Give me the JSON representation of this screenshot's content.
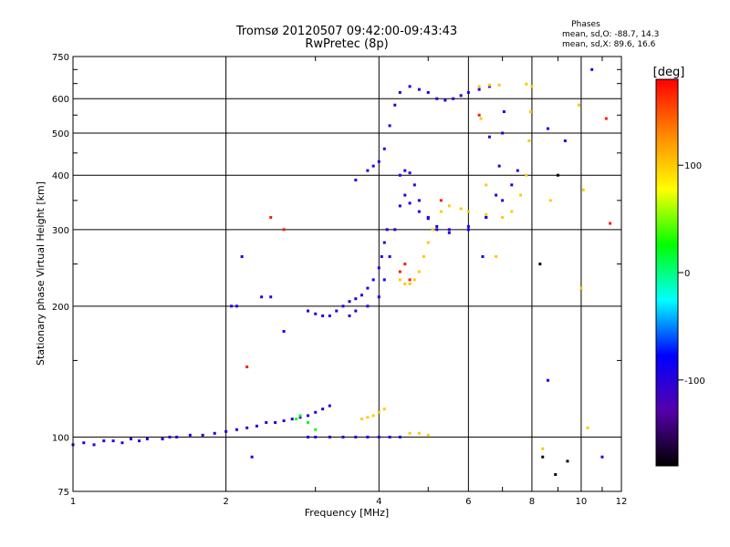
{
  "title_line1": "Tromsø 20120507 09:42:00-09:43:43",
  "title_line2": "RwPretec (8p)",
  "phases": {
    "heading": "Phases",
    "line_o": "mean, sd,O: -88.7, 14.3",
    "line_x": "mean, sd,X:  89.6, 16.6"
  },
  "chart_data": {
    "type": "scatter",
    "title": "Tromsø 20120507 09:42:00-09:43:43",
    "subtitle": "RwPretec (8p)",
    "xlabel": "Frequency [MHz]",
    "ylabel": "Stationary phase Virtual Height [km]",
    "xscale": "log",
    "yscale": "log",
    "xlim": [
      1,
      12
    ],
    "ylim": [
      75,
      750
    ],
    "x_major_ticks": [
      1,
      2,
      4,
      6,
      8,
      10,
      12
    ],
    "y_major_ticks": [
      75,
      100,
      200,
      300,
      400,
      500,
      600,
      750
    ],
    "grid": true,
    "colorbar": {
      "label": "[deg]",
      "range": [
        -180,
        180
      ],
      "ticks": [
        100,
        0,
        -100
      ],
      "colors": [
        "#000000",
        "#5500aa",
        "#0000ff",
        "#00ffff",
        "#00ff00",
        "#ffff00",
        "#ff8800",
        "#ff0000"
      ]
    },
    "series": [
      {
        "phase": -95,
        "points": [
          [
            1.0,
            96
          ],
          [
            1.05,
            97
          ],
          [
            1.1,
            96
          ],
          [
            1.15,
            98
          ],
          [
            1.2,
            98
          ],
          [
            1.25,
            97
          ],
          [
            1.3,
            99
          ],
          [
            1.35,
            98
          ],
          [
            1.4,
            99
          ],
          [
            1.5,
            99
          ],
          [
            1.55,
            100
          ],
          [
            1.6,
            100
          ],
          [
            1.7,
            101
          ],
          [
            1.8,
            101
          ],
          [
            1.9,
            102
          ],
          [
            2.0,
            103
          ],
          [
            2.1,
            104
          ],
          [
            2.2,
            105
          ],
          [
            2.3,
            106
          ],
          [
            2.4,
            108
          ],
          [
            2.5,
            108
          ],
          [
            2.6,
            109
          ],
          [
            2.7,
            110
          ],
          [
            2.8,
            111
          ],
          [
            2.9,
            112
          ],
          [
            3.0,
            114
          ],
          [
            3.1,
            116
          ],
          [
            3.2,
            118
          ]
        ]
      },
      {
        "phase": -95,
        "points": [
          [
            2.9,
            100
          ],
          [
            3.0,
            100
          ],
          [
            3.2,
            100
          ],
          [
            3.4,
            100
          ],
          [
            3.6,
            100
          ],
          [
            3.8,
            100
          ],
          [
            4.0,
            100
          ],
          [
            4.2,
            100
          ],
          [
            4.4,
            100
          ]
        ]
      },
      {
        "phase": -95,
        "points": [
          [
            2.05,
            200
          ],
          [
            2.1,
            200
          ],
          [
            2.35,
            210
          ],
          [
            2.45,
            210
          ],
          [
            2.9,
            195
          ],
          [
            3.0,
            192
          ],
          [
            3.1,
            190
          ],
          [
            3.2,
            190
          ],
          [
            3.3,
            195
          ]
        ]
      },
      {
        "phase": -95,
        "points": [
          [
            3.4,
            200
          ],
          [
            3.5,
            205
          ],
          [
            3.6,
            208
          ],
          [
            3.7,
            212
          ],
          [
            3.8,
            220
          ],
          [
            3.9,
            230
          ],
          [
            4.0,
            245
          ],
          [
            4.05,
            260
          ],
          [
            4.1,
            280
          ],
          [
            4.15,
            300
          ]
        ]
      },
      {
        "phase": -95,
        "points": [
          [
            3.5,
            190
          ],
          [
            3.6,
            195
          ],
          [
            3.8,
            200
          ],
          [
            4.0,
            210
          ],
          [
            4.1,
            230
          ],
          [
            4.2,
            260
          ],
          [
            4.3,
            300
          ],
          [
            4.4,
            340
          ],
          [
            4.5,
            360
          ],
          [
            4.6,
            345
          ],
          [
            4.8,
            330
          ],
          [
            5.0,
            318
          ],
          [
            5.2,
            305
          ],
          [
            5.5,
            300
          ],
          [
            6.0,
            305
          ],
          [
            6.5,
            320
          ],
          [
            6.8,
            360
          ],
          [
            6.9,
            420
          ],
          [
            7.0,
            500
          ],
          [
            7.05,
            560
          ]
        ]
      },
      {
        "phase": -95,
        "points": [
          [
            4.4,
            400
          ],
          [
            4.5,
            410
          ],
          [
            4.6,
            405
          ],
          [
            4.7,
            380
          ],
          [
            4.8,
            350
          ],
          [
            5.0,
            320
          ],
          [
            5.2,
            300
          ],
          [
            5.5,
            295
          ],
          [
            6.0,
            300
          ],
          [
            6.5,
            320
          ],
          [
            7.0,
            350
          ],
          [
            7.3,
            380
          ],
          [
            7.5,
            410
          ]
        ]
      },
      {
        "phase": -95,
        "points": [
          [
            3.6,
            390
          ],
          [
            3.8,
            410
          ],
          [
            3.9,
            420
          ],
          [
            4.0,
            430
          ],
          [
            4.1,
            460
          ],
          [
            4.2,
            520
          ],
          [
            4.3,
            580
          ],
          [
            4.4,
            620
          ],
          [
            4.6,
            640
          ],
          [
            4.8,
            630
          ],
          [
            5.0,
            620
          ],
          [
            5.2,
            600
          ],
          [
            5.4,
            595
          ],
          [
            5.6,
            600
          ],
          [
            5.8,
            610
          ],
          [
            6.0,
            620
          ],
          [
            6.3,
            630
          ],
          [
            6.6,
            640
          ]
        ]
      },
      {
        "phase": 100,
        "points": [
          [
            4.4,
            230
          ],
          [
            4.5,
            225
          ],
          [
            4.6,
            225
          ],
          [
            4.7,
            230
          ],
          [
            4.8,
            240
          ],
          [
            4.9,
            260
          ],
          [
            5.0,
            280
          ],
          [
            5.1,
            300
          ],
          [
            5.3,
            330
          ],
          [
            5.5,
            340
          ],
          [
            5.8,
            335
          ],
          [
            6.0,
            330
          ],
          [
            6.5,
            325
          ],
          [
            7.0,
            320
          ],
          [
            7.3,
            330
          ],
          [
            7.6,
            360
          ],
          [
            7.8,
            400
          ],
          [
            7.9,
            480
          ],
          [
            7.95,
            560
          ],
          [
            8.0,
            640
          ]
        ]
      },
      {
        "phase": 100,
        "points": [
          [
            6.3,
            640
          ],
          [
            6.6,
            645
          ],
          [
            6.9,
            645
          ],
          [
            7.8,
            648
          ],
          [
            3.7,
            110
          ],
          [
            3.8,
            111
          ],
          [
            3.9,
            112
          ],
          [
            4.0,
            114
          ],
          [
            4.1,
            116
          ],
          [
            4.6,
            102
          ],
          [
            4.8,
            102
          ],
          [
            5.0,
            101
          ]
        ]
      },
      {
        "phase": 20,
        "points": [
          [
            2.75,
            110
          ],
          [
            2.8,
            112
          ],
          [
            2.9,
            108
          ],
          [
            3.0,
            104
          ]
        ]
      },
      {
        "phase": 170,
        "points": [
          [
            2.45,
            320
          ],
          [
            2.6,
            300
          ],
          [
            4.4,
            240
          ],
          [
            4.5,
            250
          ],
          [
            4.6,
            230
          ],
          [
            5.3,
            350
          ],
          [
            6.3,
            550
          ],
          [
            11.2,
            540
          ],
          [
            11.4,
            310
          ],
          [
            2.2,
            145
          ]
        ]
      },
      {
        "phase": -95,
        "points": [
          [
            8.6,
            512
          ],
          [
            8.6,
            135
          ],
          [
            6.6,
            490
          ],
          [
            2.15,
            260
          ],
          [
            2.25,
            90
          ],
          [
            9.3,
            480
          ],
          [
            10.5,
            700
          ],
          [
            11.0,
            90
          ],
          [
            2.6,
            175
          ],
          [
            6.4,
            260
          ]
        ]
      },
      {
        "phase": 100,
        "points": [
          [
            6.35,
            540
          ],
          [
            6.5,
            380
          ],
          [
            8.4,
            94
          ],
          [
            9.9,
            580
          ],
          [
            10.1,
            370
          ],
          [
            10.0,
            220
          ],
          [
            10.3,
            105
          ],
          [
            8.7,
            350
          ],
          [
            6.8,
            260
          ]
        ]
      },
      {
        "phase": -175,
        "points": [
          [
            8.4,
            90
          ],
          [
            8.9,
            82
          ],
          [
            9.4,
            88
          ],
          [
            8.3,
            250
          ],
          [
            9.0,
            400
          ]
        ]
      }
    ]
  }
}
